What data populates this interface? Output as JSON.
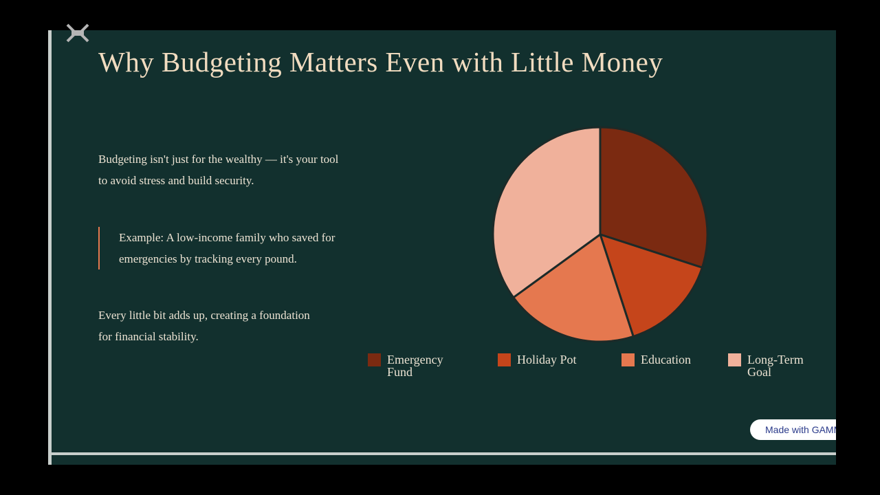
{
  "slide": {
    "title": "Why Budgeting Matters Even with Little Money",
    "paragraphs": [
      "Budgeting isn't just for the wealthy — it's your tool to avoid stress and build security.",
      "Example: A low-income family who saved for emergencies by tracking every pound.",
      "Every little bit adds up, creating a foundation for financial stability."
    ],
    "badge": "Made with GAMMA"
  },
  "chart_data": {
    "type": "pie",
    "categories": [
      "Emergency Fund",
      "Holiday Pot",
      "Education",
      "Long-Term Goal"
    ],
    "values": [
      30,
      15,
      20,
      35
    ],
    "colors": [
      "#7b2a11",
      "#c5451b",
      "#e5784f",
      "#f0b19b"
    ],
    "legend": "bottom"
  }
}
